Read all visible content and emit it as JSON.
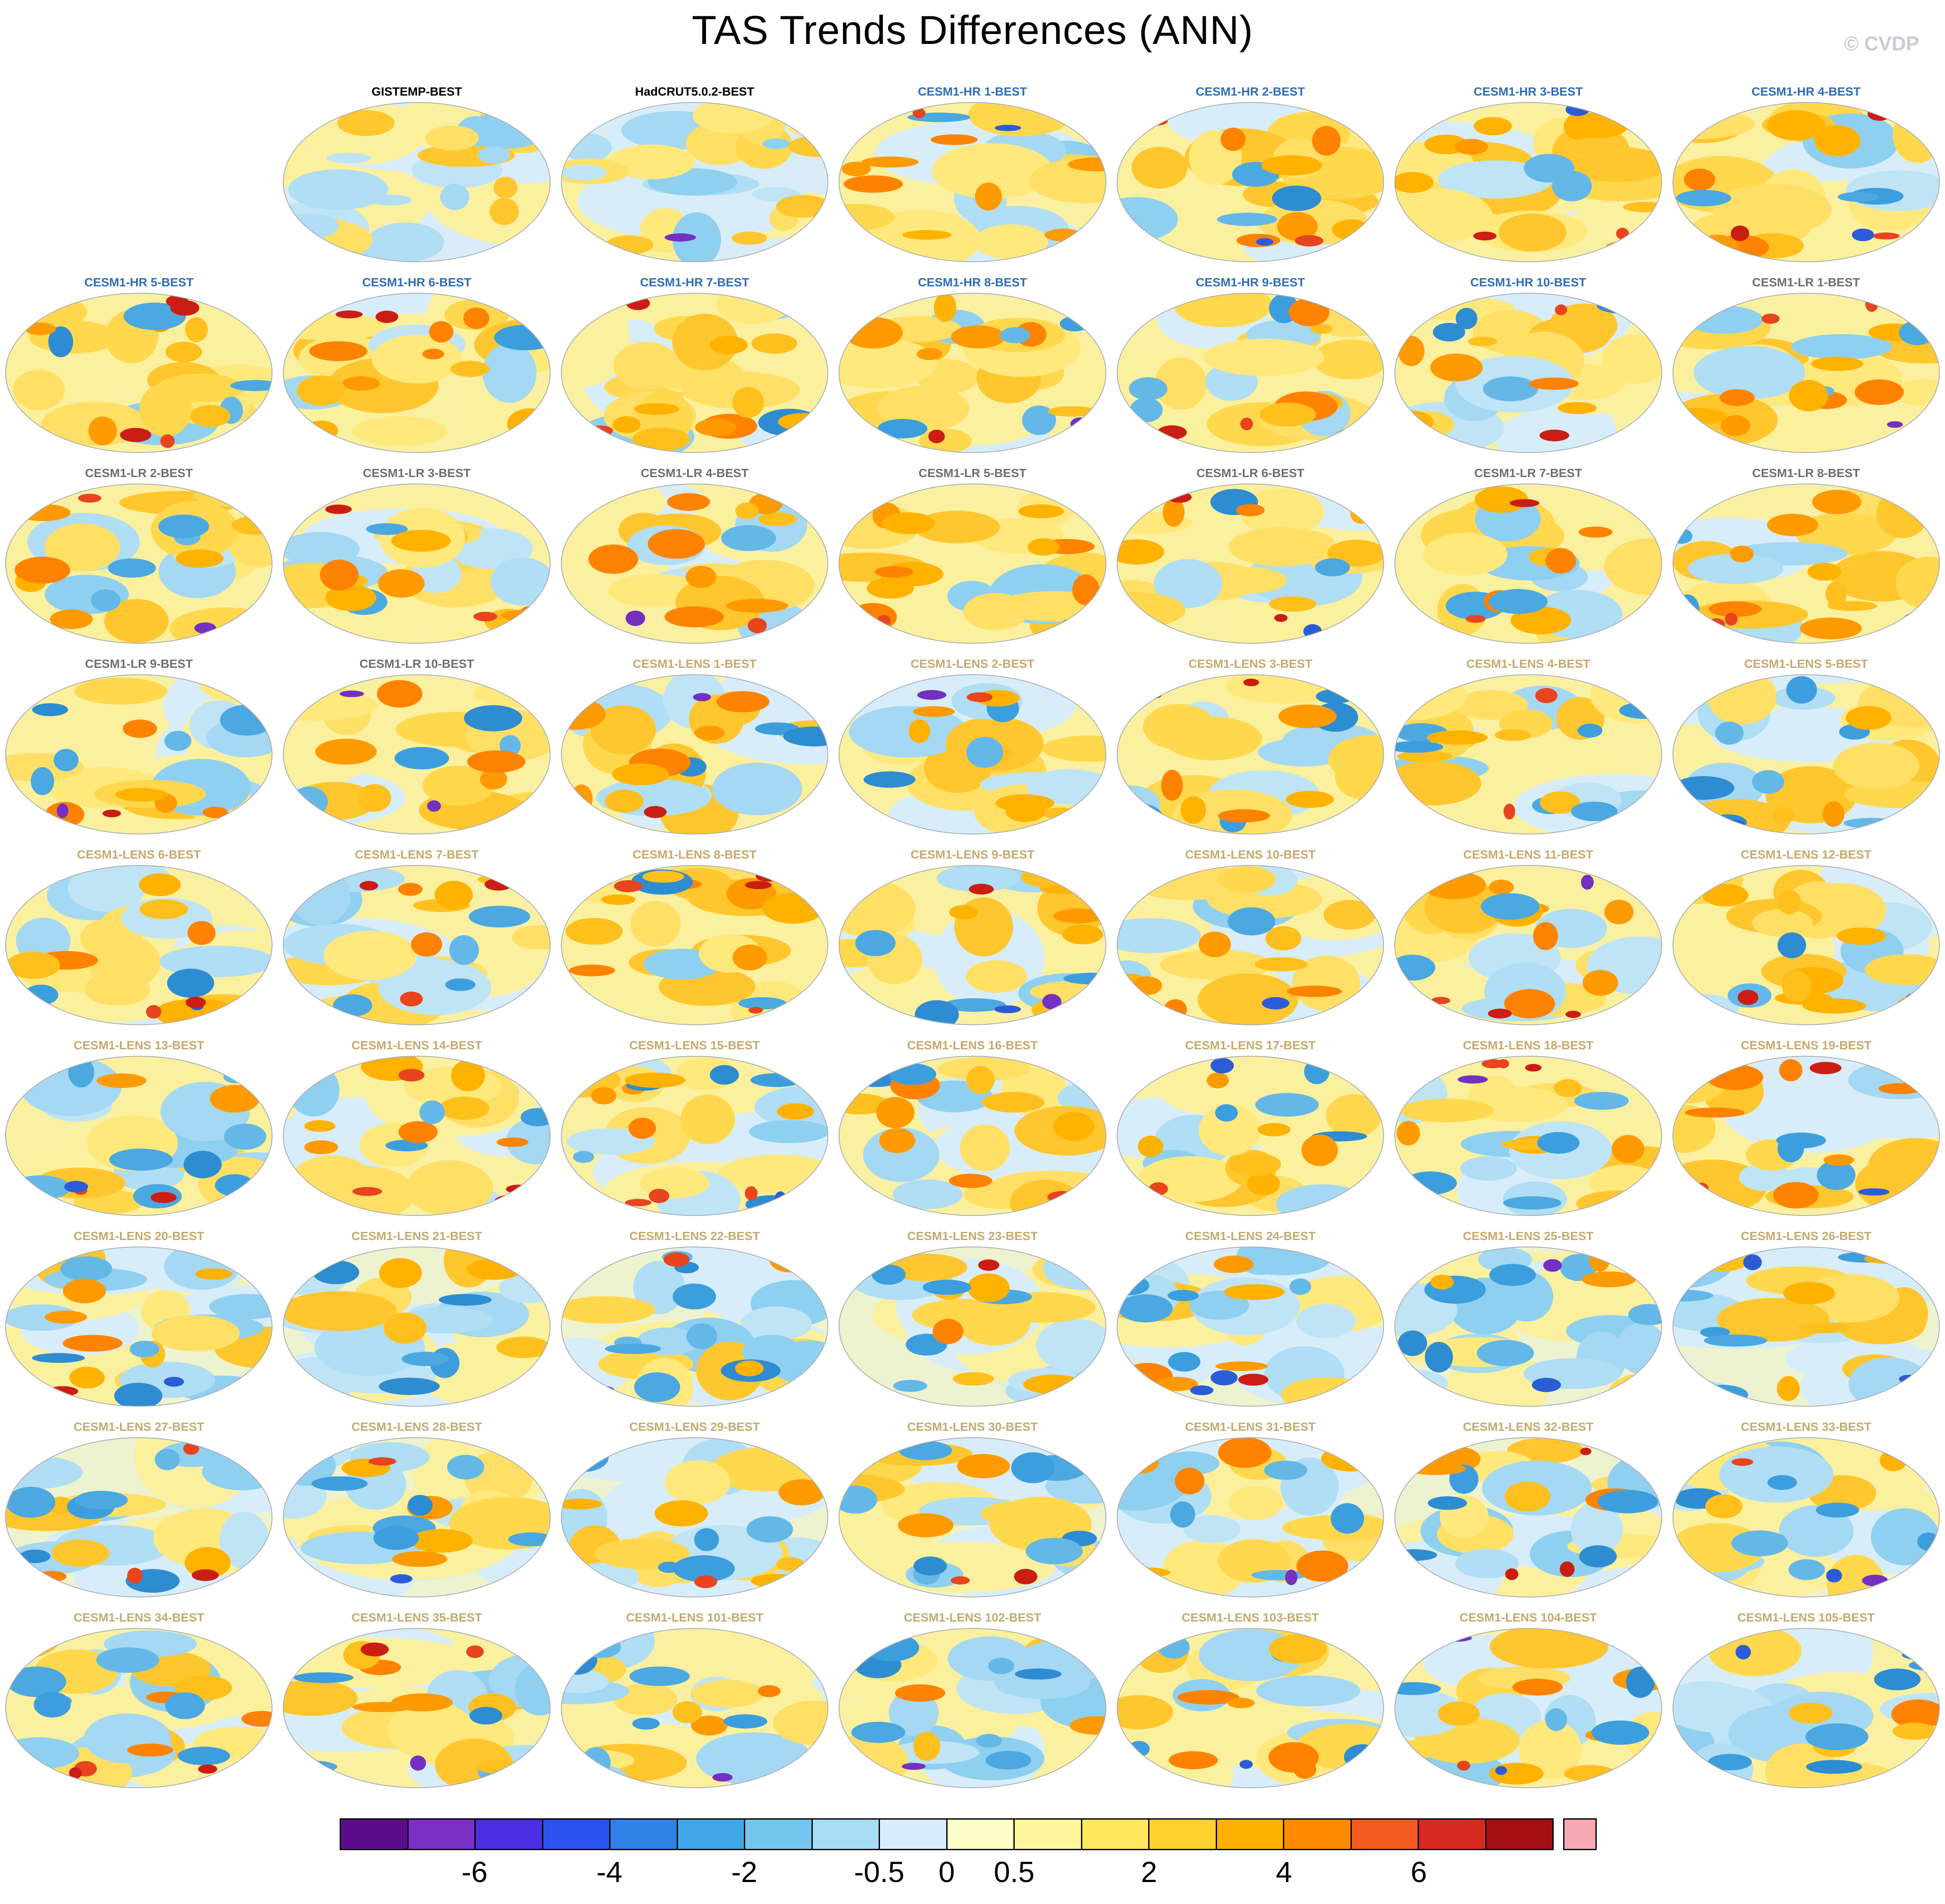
{
  "page": {
    "title": "TAS Trends Differences (ANN)",
    "watermark": "© CVDP"
  },
  "chart_data": {
    "type": "heatmap",
    "title": "TAS Trends Differences (ANN)",
    "layout": {
      "rows": 9,
      "cols": 7,
      "first_cell_empty": true,
      "legend_position": "bottom"
    },
    "group_label_colors": {
      "obs": "#000000",
      "hr": "#2f6db5",
      "lr": "#6e6e6e",
      "lens": "#c5aa6e"
    },
    "panels": [
      {
        "label": "GISTEMP-BEST",
        "group": "obs"
      },
      {
        "label": "HadCRUT5.0.2-BEST",
        "group": "obs"
      },
      {
        "label": "CESM1-HR 1-BEST",
        "group": "hr"
      },
      {
        "label": "CESM1-HR 2-BEST",
        "group": "hr"
      },
      {
        "label": "CESM1-HR 3-BEST",
        "group": "hr"
      },
      {
        "label": "CESM1-HR 4-BEST",
        "group": "hr"
      },
      {
        "label": "CESM1-HR 5-BEST",
        "group": "hr"
      },
      {
        "label": "CESM1-HR 6-BEST",
        "group": "hr"
      },
      {
        "label": "CESM1-HR 7-BEST",
        "group": "hr"
      },
      {
        "label": "CESM1-HR 8-BEST",
        "group": "hr"
      },
      {
        "label": "CESM1-HR 9-BEST",
        "group": "hr"
      },
      {
        "label": "CESM1-HR 10-BEST",
        "group": "hr"
      },
      {
        "label": "CESM1-LR 1-BEST",
        "group": "lr"
      },
      {
        "label": "CESM1-LR 2-BEST",
        "group": "lr"
      },
      {
        "label": "CESM1-LR 3-BEST",
        "group": "lr"
      },
      {
        "label": "CESM1-LR 4-BEST",
        "group": "lr"
      },
      {
        "label": "CESM1-LR 5-BEST",
        "group": "lr"
      },
      {
        "label": "CESM1-LR 6-BEST",
        "group": "lr"
      },
      {
        "label": "CESM1-LR 7-BEST",
        "group": "lr"
      },
      {
        "label": "CESM1-LR 8-BEST",
        "group": "lr"
      },
      {
        "label": "CESM1-LR 9-BEST",
        "group": "lr"
      },
      {
        "label": "CESM1-LR 10-BEST",
        "group": "lr"
      },
      {
        "label": "CESM1-LENS 1-BEST",
        "group": "lens"
      },
      {
        "label": "CESM1-LENS 2-BEST",
        "group": "lens"
      },
      {
        "label": "CESM1-LENS 3-BEST",
        "group": "lens"
      },
      {
        "label": "CESM1-LENS 4-BEST",
        "group": "lens"
      },
      {
        "label": "CESM1-LENS 5-BEST",
        "group": "lens"
      },
      {
        "label": "CESM1-LENS 6-BEST",
        "group": "lens"
      },
      {
        "label": "CESM1-LENS 7-BEST",
        "group": "lens"
      },
      {
        "label": "CESM1-LENS 8-BEST",
        "group": "lens"
      },
      {
        "label": "CESM1-LENS 9-BEST",
        "group": "lens"
      },
      {
        "label": "CESM1-LENS 10-BEST",
        "group": "lens"
      },
      {
        "label": "CESM1-LENS 11-BEST",
        "group": "lens"
      },
      {
        "label": "CESM1-LENS 12-BEST",
        "group": "lens"
      },
      {
        "label": "CESM1-LENS 13-BEST",
        "group": "lens"
      },
      {
        "label": "CESM1-LENS 14-BEST",
        "group": "lens"
      },
      {
        "label": "CESM1-LENS 15-BEST",
        "group": "lens"
      },
      {
        "label": "CESM1-LENS 16-BEST",
        "group": "lens"
      },
      {
        "label": "CESM1-LENS 17-BEST",
        "group": "lens"
      },
      {
        "label": "CESM1-LENS 18-BEST",
        "group": "lens"
      },
      {
        "label": "CESM1-LENS 19-BEST",
        "group": "lens"
      },
      {
        "label": "CESM1-LENS 20-BEST",
        "group": "lens"
      },
      {
        "label": "CESM1-LENS 21-BEST",
        "group": "lens"
      },
      {
        "label": "CESM1-LENS 22-BEST",
        "group": "lens"
      },
      {
        "label": "CESM1-LENS 23-BEST",
        "group": "lens"
      },
      {
        "label": "CESM1-LENS 24-BEST",
        "group": "lens"
      },
      {
        "label": "CESM1-LENS 25-BEST",
        "group": "lens"
      },
      {
        "label": "CESM1-LENS 26-BEST",
        "group": "lens"
      },
      {
        "label": "CESM1-LENS 27-BEST",
        "group": "lens"
      },
      {
        "label": "CESM1-LENS 28-BEST",
        "group": "lens"
      },
      {
        "label": "CESM1-LENS 29-BEST",
        "group": "lens"
      },
      {
        "label": "CESM1-LENS 30-BEST",
        "group": "lens"
      },
      {
        "label": "CESM1-LENS 31-BEST",
        "group": "lens"
      },
      {
        "label": "CESM1-LENS 32-BEST",
        "group": "lens"
      },
      {
        "label": "CESM1-LENS 33-BEST",
        "group": "lens"
      },
      {
        "label": "CESM1-LENS 34-BEST",
        "group": "lens"
      },
      {
        "label": "CESM1-LENS 35-BEST",
        "group": "lens"
      },
      {
        "label": "CESM1-LENS 101-BEST",
        "group": "lens"
      },
      {
        "label": "CESM1-LENS 102-BEST",
        "group": "lens"
      },
      {
        "label": "CESM1-LENS 103-BEST",
        "group": "lens"
      },
      {
        "label": "CESM1-LENS 104-BEST",
        "group": "lens"
      },
      {
        "label": "CESM1-LENS 105-BEST",
        "group": "lens"
      }
    ],
    "colorbar": {
      "segment_colors": [
        "#5c0c8a",
        "#7b2fc4",
        "#4b2ee0",
        "#2a52ee",
        "#2f81e8",
        "#41a6e8",
        "#74c6ef",
        "#a6dcf4",
        "#d6eefb",
        "#ffffc8",
        "#fff79e",
        "#ffe85e",
        "#ffd12e",
        "#ffb000",
        "#ff8a00",
        "#f25a1e",
        "#d62920",
        "#a40f16"
      ],
      "over_color": "#f9a9b4",
      "ticks": [
        {
          "label": "-6",
          "pos": 0.1111
        },
        {
          "label": "-4",
          "pos": 0.2222
        },
        {
          "label": "-2",
          "pos": 0.3333
        },
        {
          "label": "-0.5",
          "pos": 0.4444
        },
        {
          "label": "0",
          "pos": 0.5
        },
        {
          "label": "0.5",
          "pos": 0.5556
        },
        {
          "label": "2",
          "pos": 0.6667
        },
        {
          "label": "4",
          "pos": 0.7778
        },
        {
          "label": "6",
          "pos": 0.8889
        }
      ]
    }
  }
}
